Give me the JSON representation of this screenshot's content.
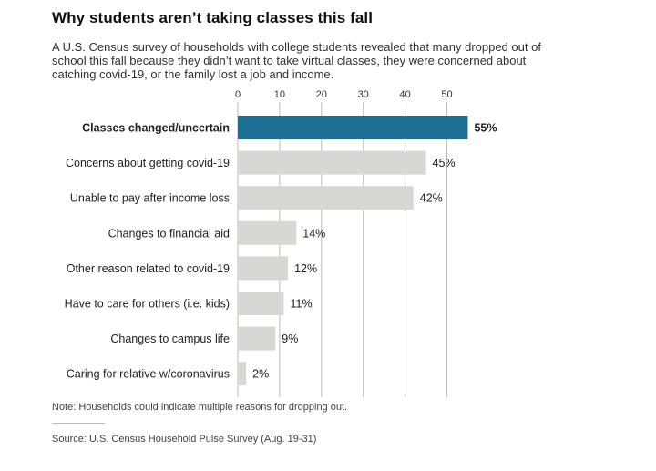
{
  "title": "Why students aren’t taking classes this fall",
  "subtitle": "A U.S. Census survey of households with college students revealed that many dropped out of school this fall because they didn’t want to take virtual classes, they were concerned about catching covid-19, or the family lost a job and income.",
  "note": "Note: Households could indicate multiple reasons for dropping out.",
  "source": "Source: U.S. Census Household Pulse Survey (Aug. 19-31)",
  "colors": {
    "highlight_bar": "#1b6f93",
    "bar": "#d7d7d4",
    "grid": "#b9b9b9"
  },
  "chart_data": {
    "type": "bar",
    "orientation": "horizontal",
    "categories": [
      "Classes changed/uncertain",
      "Concerns about getting covid-19",
      "Unable to pay after income loss",
      "Changes to financial aid",
      "Other reason related to covid-19",
      "Have to care for others (i.e. kids)",
      "Changes to campus life",
      "Caring for relative w/coronavirus"
    ],
    "values": [
      55,
      45,
      42,
      14,
      12,
      11,
      9,
      2
    ],
    "value_labels": [
      "55%",
      "45%",
      "42%",
      "14%",
      "12%",
      "11%",
      "9%",
      "2%"
    ],
    "highlight_index": 0,
    "xlim": [
      0,
      55
    ],
    "xticks": [
      0,
      10,
      20,
      30,
      40,
      50
    ],
    "xaxis_position": "top",
    "grid": true
  }
}
